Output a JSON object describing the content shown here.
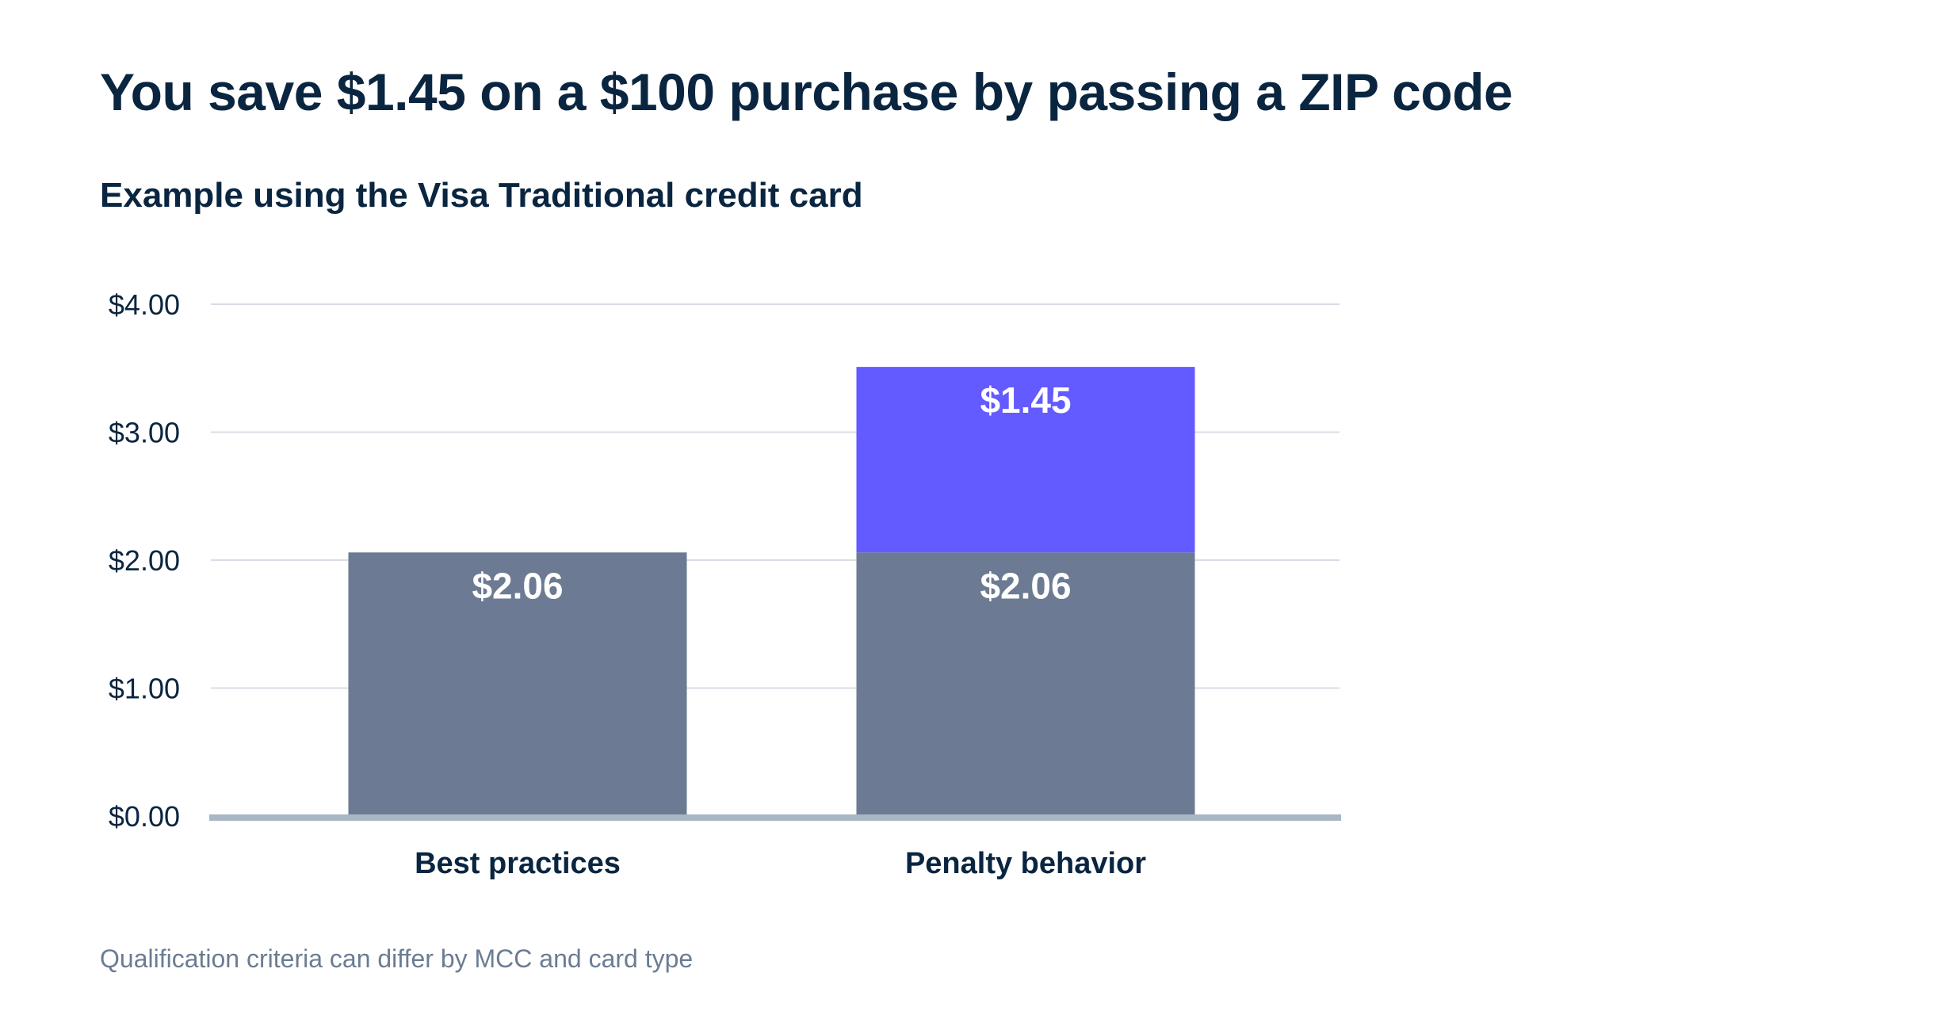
{
  "title": "You save $1.45 on a $100 purchase by passing a ZIP code",
  "subtitle": "Example using the Visa Traditional credit card",
  "footnote": "Qualification criteria can differ by MCC and card type",
  "colors": {
    "text": "#0a2540",
    "base_segment": "#6c7b93",
    "extra_segment": "#635bff",
    "gridline": "#d8dde5",
    "baseline": "#a9b6c4",
    "footnote": "#6b7c93"
  },
  "chart_data": {
    "type": "bar",
    "stacked": true,
    "categories": [
      "Best practices",
      "Penalty behavior"
    ],
    "series": [
      {
        "values": [
          2.06,
          2.06
        ],
        "data_labels": [
          "$2.06",
          "$2.06"
        ],
        "color": "#6c7b93"
      },
      {
        "values": [
          0,
          1.45
        ],
        "data_labels": [
          "",
          "$1.45"
        ],
        "color": "#635bff"
      }
    ],
    "ylim": [
      0,
      4
    ],
    "y_ticks": [
      0,
      1,
      2,
      3,
      4
    ],
    "y_tick_labels": [
      "$0.00",
      "$1.00",
      "$2.00",
      "$3.00",
      "$4.00"
    ],
    "grid": true,
    "legend": "none"
  }
}
